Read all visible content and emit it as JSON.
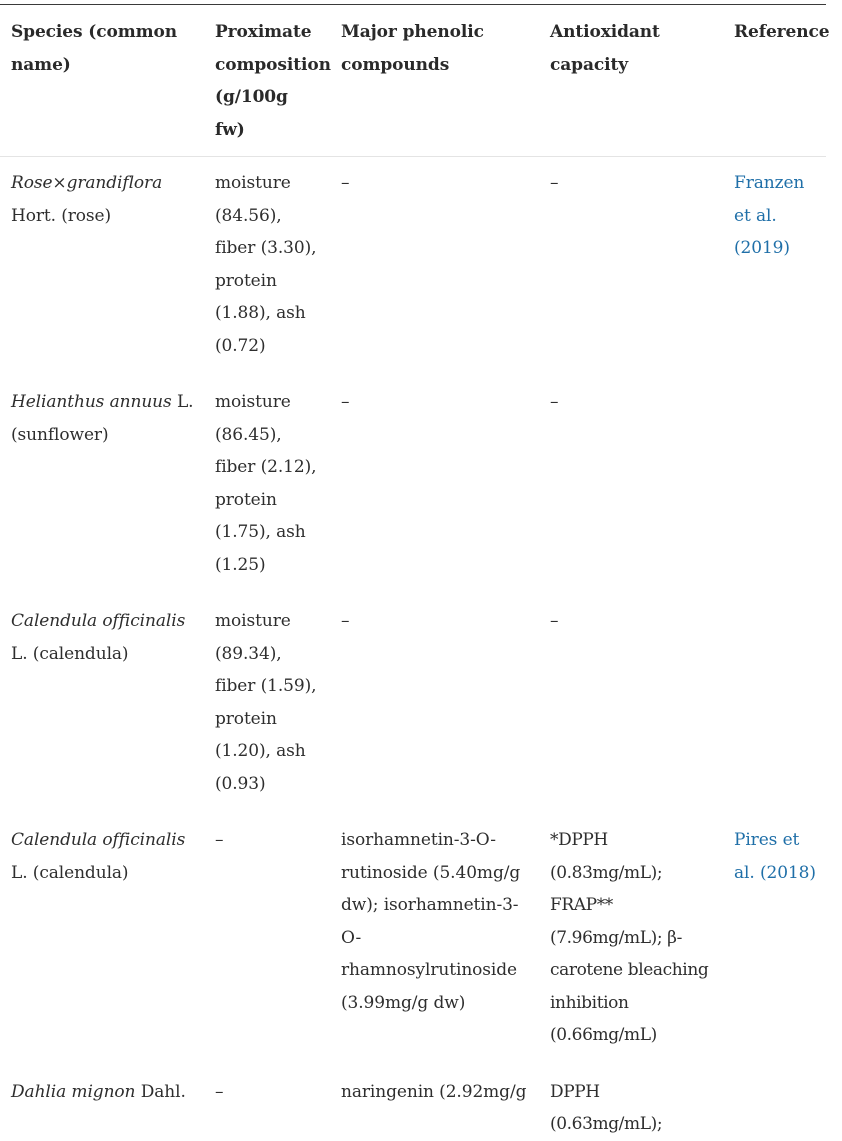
{
  "headers": {
    "species": "Species (common name)",
    "proximate": "Proximate composition (g/100g fw)",
    "phenolic": "Major phenolic compounds",
    "antioxidant": "Antioxidant capacity",
    "reference": "Reference"
  },
  "rows": [
    {
      "species_italic": "Rose×grandiflora",
      "species_rest": " Hort. (rose)",
      "proximate": "moisture (84.56), fiber (3.30), protein (1.88), ash (0.72)",
      "phenolic": "–",
      "antioxidant": "–",
      "reference": "Franzen et al. (2019)"
    },
    {
      "species_italic": "Helianthus annuus",
      "species_rest": " L. (sunflower)",
      "proximate": "moisture (86.45), fiber (2.12), protein (1.75), ash (1.25)",
      "phenolic": "–",
      "antioxidant": "–",
      "reference": ""
    },
    {
      "species_italic": "Calendula officinalis",
      "species_rest": " L. (calendula)",
      "proximate": "moisture (89.34), fiber (1.59), protein (1.20), ash (0.93)",
      "phenolic": "–",
      "antioxidant": "–",
      "reference": ""
    },
    {
      "species_italic": "Calendula officinalis",
      "species_rest": " L. (calendula)",
      "proximate": "–",
      "phenolic": "isorhamnetin-3-O-rutinoside (5.40mg/g dw); isorhamnetin-3-O-rhamnosylrutinoside (3.99mg/g dw)",
      "antioxidant": "*DPPH (0.83mg/mL); FRAP** (7.96mg/mL); β-carotene bleaching inhibition (0.66mg/mL)",
      "reference": "Pires et al. (2018)"
    },
    {
      "species_italic": "Dahlia mignon",
      "species_rest": " Dahl.",
      "proximate": "–",
      "phenolic": "naringenin (2.92mg/g",
      "antioxidant": "DPPH (0.63mg/mL);",
      "reference": ""
    }
  ]
}
